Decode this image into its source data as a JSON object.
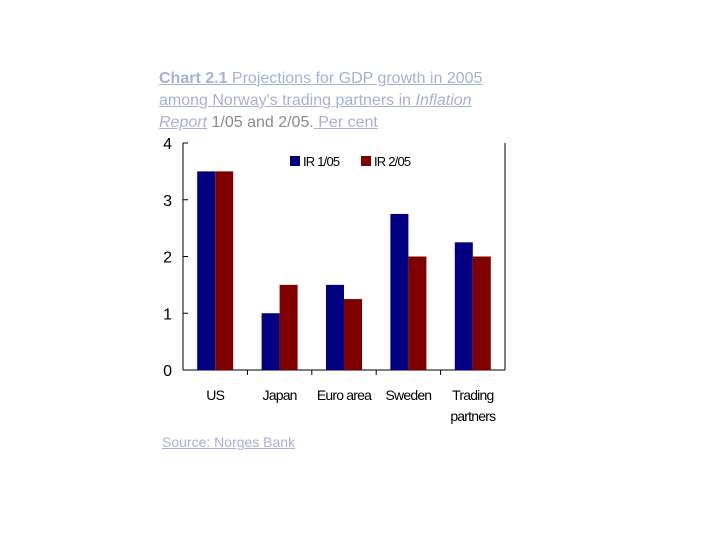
{
  "title": {
    "head": "Chart 2.1",
    "part1": " Projections for GDP growth in 2005 among Norway's trading partners in ",
    "italic": "Inflation Report",
    "part2": " 1/05 and 2/05.",
    "part3": " Per cent"
  },
  "source": {
    "label": "Source:",
    "name": " Norges Bank"
  },
  "chart_data": {
    "type": "bar",
    "categories": [
      "US",
      "Japan",
      "Euro area",
      "Sweden",
      "Trading partners"
    ],
    "category_lines": [
      [
        "US"
      ],
      [
        "Japan"
      ],
      [
        "Euro area"
      ],
      [
        "Sweden"
      ],
      [
        "Trading",
        "partners"
      ]
    ],
    "series": [
      {
        "name": "IR 1/05",
        "color": "#000080",
        "values": [
          3.5,
          1.0,
          1.5,
          2.75,
          2.25
        ]
      },
      {
        "name": "IR 2/05",
        "color": "#800000",
        "values": [
          3.5,
          1.5,
          1.25,
          2.0,
          2.0
        ]
      }
    ],
    "ylim": [
      0,
      4
    ],
    "yticks": [
      "0",
      "1",
      "2",
      "3",
      "4"
    ],
    "legend_position": "top-center",
    "grid": false,
    "xlabel": "",
    "ylabel": ""
  }
}
